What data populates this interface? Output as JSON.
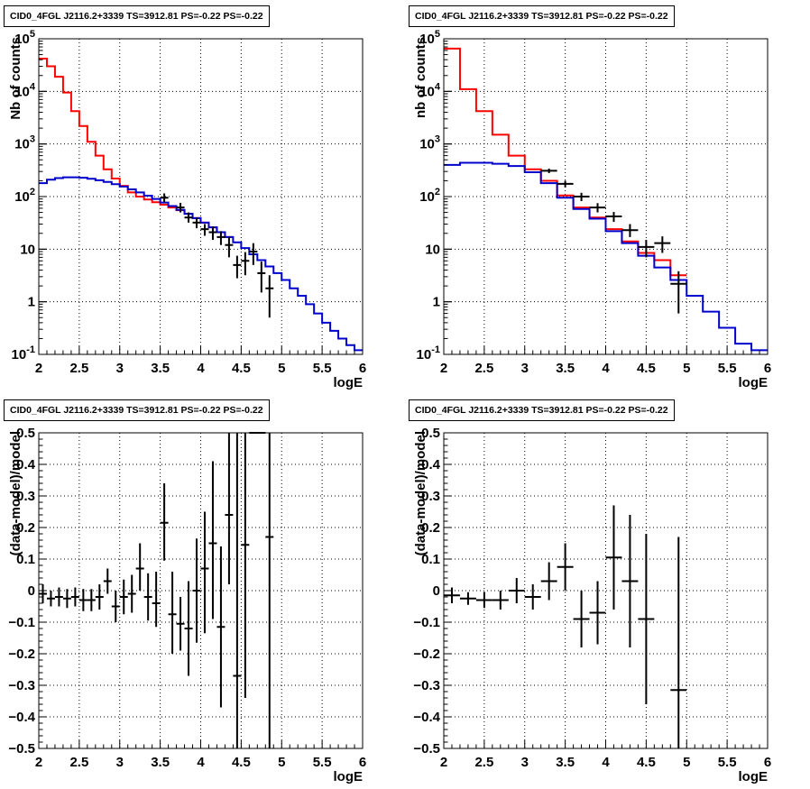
{
  "chart_data": [
    {
      "type": "line",
      "title": "CID0_4FGL J2116.2+3339 TS=3912.81 PS=-0.22 PS=-0.22",
      "xlabel": "logE",
      "ylabel": "Nb of counts",
      "xlim": [
        2,
        6
      ],
      "ylim": [
        0.1,
        100000
      ],
      "yscale": "log",
      "grid": true,
      "xticks": [
        "2",
        "2.5",
        "3",
        "3.5",
        "4",
        "4.5",
        "5",
        "5.5",
        "6"
      ],
      "yticks": [
        "10^-1",
        "1",
        "10",
        "10^2",
        "10^3",
        "10^4",
        "10^5"
      ],
      "series": [
        {
          "kind": "step",
          "color": "#ff0000",
          "edges": [
            2.0,
            2.1,
            2.2,
            2.3,
            2.4,
            2.5,
            2.6,
            2.7,
            2.8,
            2.9,
            3.0,
            3.1,
            3.2,
            3.3,
            3.4,
            3.5,
            3.6,
            3.7,
            3.8,
            3.9,
            4.0,
            4.1,
            4.2,
            4.3,
            4.4
          ],
          "values": [
            42000,
            30000,
            19000,
            9500,
            4200,
            2200,
            1100,
            600,
            330,
            220,
            160,
            120,
            100,
            88,
            78,
            70,
            62,
            55,
            47,
            39,
            32,
            26,
            21,
            17
          ]
        },
        {
          "kind": "step",
          "color": "#0000cc",
          "edges": [
            2.0,
            2.1,
            2.2,
            2.3,
            2.4,
            2.5,
            2.6,
            2.7,
            2.8,
            2.9,
            3.0,
            3.1,
            3.2,
            3.3,
            3.4,
            3.5,
            3.6,
            3.7,
            3.8,
            3.9,
            4.0,
            4.1,
            4.2,
            4.3,
            4.4,
            4.5,
            4.6,
            4.7,
            4.8,
            4.9,
            5.0,
            5.1,
            5.2,
            5.3,
            5.4,
            5.5,
            5.6,
            5.7,
            5.8,
            5.9,
            6.0
          ],
          "values": [
            180,
            210,
            225,
            232,
            232,
            228,
            218,
            205,
            190,
            172,
            155,
            137,
            120,
            104,
            90,
            77,
            66,
            56,
            47,
            39,
            32,
            26,
            21,
            17,
            13.5,
            10.5,
            8,
            6.2,
            4.7,
            3.5,
            2.6,
            1.8,
            1.3,
            0.9,
            0.6,
            0.4,
            0.28,
            0.2,
            0.15,
            0.12
          ]
        },
        {
          "kind": "points",
          "color": "#000000",
          "x": [
            3.55,
            3.75,
            3.85,
            3.95,
            4.05,
            4.15,
            4.25,
            4.35,
            4.45,
            4.55,
            4.65,
            4.75,
            4.85
          ],
          "y": [
            95,
            62,
            40,
            32,
            24,
            21,
            17,
            12,
            5,
            6,
            9,
            3.5,
            1.8
          ],
          "ylow": [
            78,
            50,
            32,
            25,
            18,
            15,
            12,
            7,
            2.8,
            3.2,
            5,
            1.5,
            0.5
          ],
          "yhigh": [
            115,
            76,
            50,
            40,
            30,
            27,
            22,
            17,
            7.5,
            8.8,
            13,
            5.8,
            3.2
          ],
          "xerr": 0.05
        }
      ]
    },
    {
      "type": "line",
      "title": "CID0_4FGL J2116.2+3339 TS=3912.81 PS=-0.22 PS=-0.22",
      "xlabel": "logE",
      "ylabel": "nb of counts",
      "xlim": [
        2,
        6
      ],
      "ylim": [
        0.1,
        100000
      ],
      "yscale": "log",
      "grid": true,
      "xticks": [
        "2",
        "2.5",
        "3",
        "3.5",
        "4",
        "4.5",
        "5",
        "5.5",
        "6"
      ],
      "yticks": [
        "10^-1",
        "1",
        "10",
        "10^2",
        "10^3",
        "10^4",
        "10^5"
      ],
      "series": [
        {
          "kind": "step",
          "color": "#ff0000",
          "edges": [
            2.0,
            2.2,
            2.4,
            2.6,
            2.8,
            3.0,
            3.2,
            3.4,
            3.6,
            3.8,
            4.0,
            4.2,
            4.4,
            4.6,
            4.8,
            5.0
          ],
          "values": [
            65000,
            11000,
            4200,
            1500,
            600,
            330,
            200,
            105,
            62,
            40,
            24,
            14,
            8.5,
            6.2,
            3.2
          ]
        },
        {
          "kind": "step",
          "color": "#0000cc",
          "edges": [
            2.0,
            2.2,
            2.4,
            2.6,
            2.8,
            3.0,
            3.2,
            3.4,
            3.6,
            3.8,
            4.0,
            4.2,
            4.4,
            4.6,
            4.8,
            5.0,
            5.2,
            5.4,
            5.6,
            5.8,
            6.0
          ],
          "values": [
            400,
            440,
            440,
            420,
            380,
            290,
            180,
            95,
            58,
            38,
            22,
            13,
            7.5,
            4.5,
            2.6,
            1.3,
            0.65,
            0.32,
            0.16,
            0.12
          ]
        },
        {
          "kind": "points",
          "color": "#000000",
          "x": [
            3.3,
            3.5,
            3.7,
            3.9,
            4.1,
            4.3,
            4.5,
            4.7,
            4.9
          ],
          "y": [
            310,
            175,
            100,
            62,
            42,
            23,
            11,
            13,
            2.2
          ],
          "ylow": [
            280,
            150,
            82,
            50,
            33,
            17,
            7,
            8.5,
            0.6
          ],
          "yhigh": [
            340,
            200,
            118,
            75,
            51,
            30,
            15,
            17.5,
            3.8
          ],
          "xerr": 0.1
        }
      ]
    },
    {
      "type": "scatter",
      "title": "CID0_4FGL J2116.2+3339 TS=3912.81 PS=-0.22 PS=-0.22",
      "xlabel": "logE",
      "ylabel": "(data-model)/model",
      "xlim": [
        2,
        6
      ],
      "ylim": [
        -0.5,
        0.5
      ],
      "grid": true,
      "xticks": [
        "2",
        "2.5",
        "3",
        "3.5",
        "4",
        "4.5",
        "5",
        "5.5",
        "6"
      ],
      "yticks": [
        "−0.5",
        "−0.4",
        "−0.3",
        "−0.2",
        "−0.1",
        "0",
        "0.1",
        "0.2",
        "0.3",
        "0.4",
        "0.5"
      ],
      "series": [
        {
          "kind": "points",
          "color": "#000000",
          "x": [
            2.05,
            2.15,
            2.25,
            2.35,
            2.45,
            2.55,
            2.65,
            2.75,
            2.85,
            2.95,
            3.05,
            3.15,
            3.25,
            3.35,
            3.45,
            3.55,
            3.65,
            3.75,
            3.85,
            3.95,
            4.05,
            4.15,
            4.25,
            4.35,
            4.45,
            4.55,
            4.65,
            4.75,
            4.85
          ],
          "y": [
            -0.01,
            -0.025,
            -0.02,
            -0.025,
            -0.02,
            -0.03,
            -0.03,
            -0.02,
            0.03,
            -0.05,
            -0.02,
            -0.01,
            0.07,
            -0.02,
            -0.04,
            0.215,
            -0.075,
            -0.105,
            -0.12,
            0.0,
            0.07,
            0.15,
            -0.115,
            0.24,
            -0.27,
            0.145,
            0.5,
            0.5,
            0.17
          ],
          "ylow": [
            -0.04,
            -0.05,
            -0.05,
            -0.055,
            -0.05,
            -0.065,
            -0.065,
            -0.06,
            -0.01,
            -0.1,
            -0.075,
            -0.07,
            0.0,
            -0.095,
            -0.115,
            0.095,
            -0.2,
            -0.19,
            -0.27,
            -0.165,
            -0.135,
            -0.09,
            -0.37,
            0.02,
            -0.5,
            -0.34,
            0.5,
            0.5,
            -0.5
          ],
          "yhigh": [
            0.02,
            0.0,
            0.01,
            0.005,
            0.01,
            0.005,
            0.005,
            0.02,
            0.07,
            0.0,
            0.035,
            0.05,
            0.15,
            0.055,
            0.06,
            0.34,
            0.06,
            -0.02,
            0.03,
            0.165,
            0.25,
            0.41,
            0.14,
            0.5,
            0.5,
            0.5,
            0.5,
            0.5,
            0.5
          ],
          "xerr": 0.05
        }
      ]
    },
    {
      "type": "scatter",
      "title": "CID0_4FGL J2116.2+3339 TS=3912.81 PS=-0.22 PS=-0.22",
      "xlabel": "logE",
      "ylabel": "(data-model)/model",
      "xlim": [
        2,
        6
      ],
      "ylim": [
        -0.5,
        0.5
      ],
      "grid": true,
      "xticks": [
        "2",
        "2.5",
        "3",
        "3.5",
        "4",
        "4.5",
        "5",
        "5.5",
        "6"
      ],
      "yticks": [
        "−0.5",
        "−0.4",
        "−0.3",
        "−0.2",
        "−0.1",
        "0",
        "0.1",
        "0.2",
        "0.3",
        "0.4",
        "0.5"
      ],
      "series": [
        {
          "kind": "points",
          "color": "#000000",
          "x": [
            2.1,
            2.3,
            2.5,
            2.7,
            2.9,
            3.1,
            3.3,
            3.5,
            3.7,
            3.9,
            4.1,
            4.3,
            4.5,
            4.9
          ],
          "y": [
            -0.015,
            -0.025,
            -0.03,
            -0.03,
            0.0,
            -0.02,
            0.03,
            0.075,
            -0.09,
            -0.07,
            0.105,
            0.03,
            -0.09,
            -0.315
          ],
          "ylow": [
            -0.04,
            -0.045,
            -0.055,
            -0.06,
            -0.04,
            -0.06,
            -0.03,
            0.0,
            -0.18,
            -0.17,
            -0.06,
            -0.18,
            -0.36,
            -0.5
          ],
          "yhigh": [
            0.01,
            -0.005,
            -0.005,
            0.0,
            0.04,
            0.02,
            0.09,
            0.15,
            0.0,
            0.03,
            0.27,
            0.24,
            0.18,
            0.17
          ],
          "xerr": 0.1
        }
      ]
    }
  ]
}
